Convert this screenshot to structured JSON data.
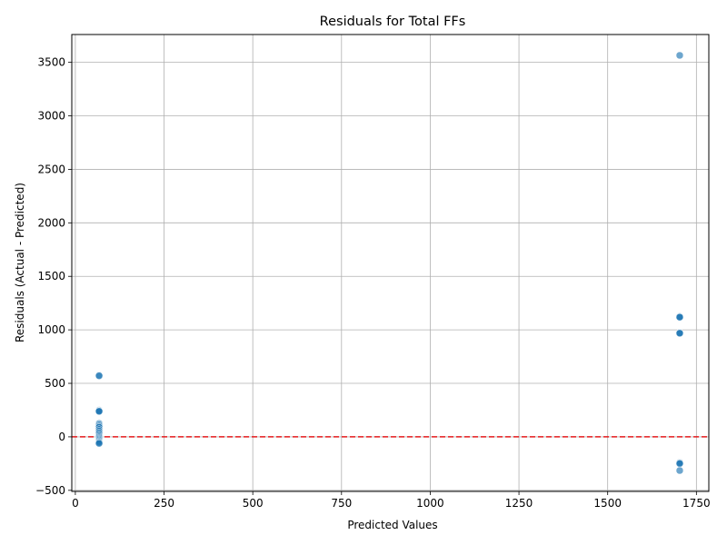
{
  "chart_data": {
    "type": "scatter",
    "title": "Residuals for Total FFs",
    "xlabel": "Predicted Values",
    "ylabel": "Residuals (Actual - Predicted)",
    "xlim": [
      -10,
      1785
    ],
    "ylim": [
      -510,
      3760
    ],
    "xticks": [
      0,
      250,
      500,
      750,
      1000,
      1250,
      1500,
      1750
    ],
    "yticks": [
      -500,
      0,
      500,
      1000,
      1500,
      2000,
      2500,
      3000,
      3500
    ],
    "grid": true,
    "reference_line": {
      "y": 0,
      "color": "#e41a1c",
      "style": "dashed"
    },
    "point_color": "#1f77b4",
    "point_alpha": 0.65,
    "points": [
      [
        67,
        575
      ],
      [
        67,
        570
      ],
      [
        67,
        250
      ],
      [
        67,
        245
      ],
      [
        67,
        240
      ],
      [
        67,
        238
      ],
      [
        67,
        125
      ],
      [
        67,
        112
      ],
      [
        67,
        100
      ],
      [
        67,
        90
      ],
      [
        67,
        70
      ],
      [
        67,
        55
      ],
      [
        67,
        40
      ],
      [
        67,
        25
      ],
      [
        67,
        10
      ],
      [
        67,
        0
      ],
      [
        67,
        -10
      ],
      [
        67,
        -20
      ],
      [
        67,
        -30
      ],
      [
        67,
        -40
      ],
      [
        67,
        -48
      ],
      [
        67,
        -55
      ],
      [
        67,
        -62
      ],
      [
        1703,
        3565
      ],
      [
        1703,
        1125
      ],
      [
        1703,
        1120
      ],
      [
        1703,
        1118
      ],
      [
        1703,
        975
      ],
      [
        1703,
        970
      ],
      [
        1703,
        968
      ],
      [
        1703,
        -240
      ],
      [
        1703,
        -245
      ],
      [
        1703,
        -250
      ],
      [
        1703,
        -315
      ]
    ]
  }
}
